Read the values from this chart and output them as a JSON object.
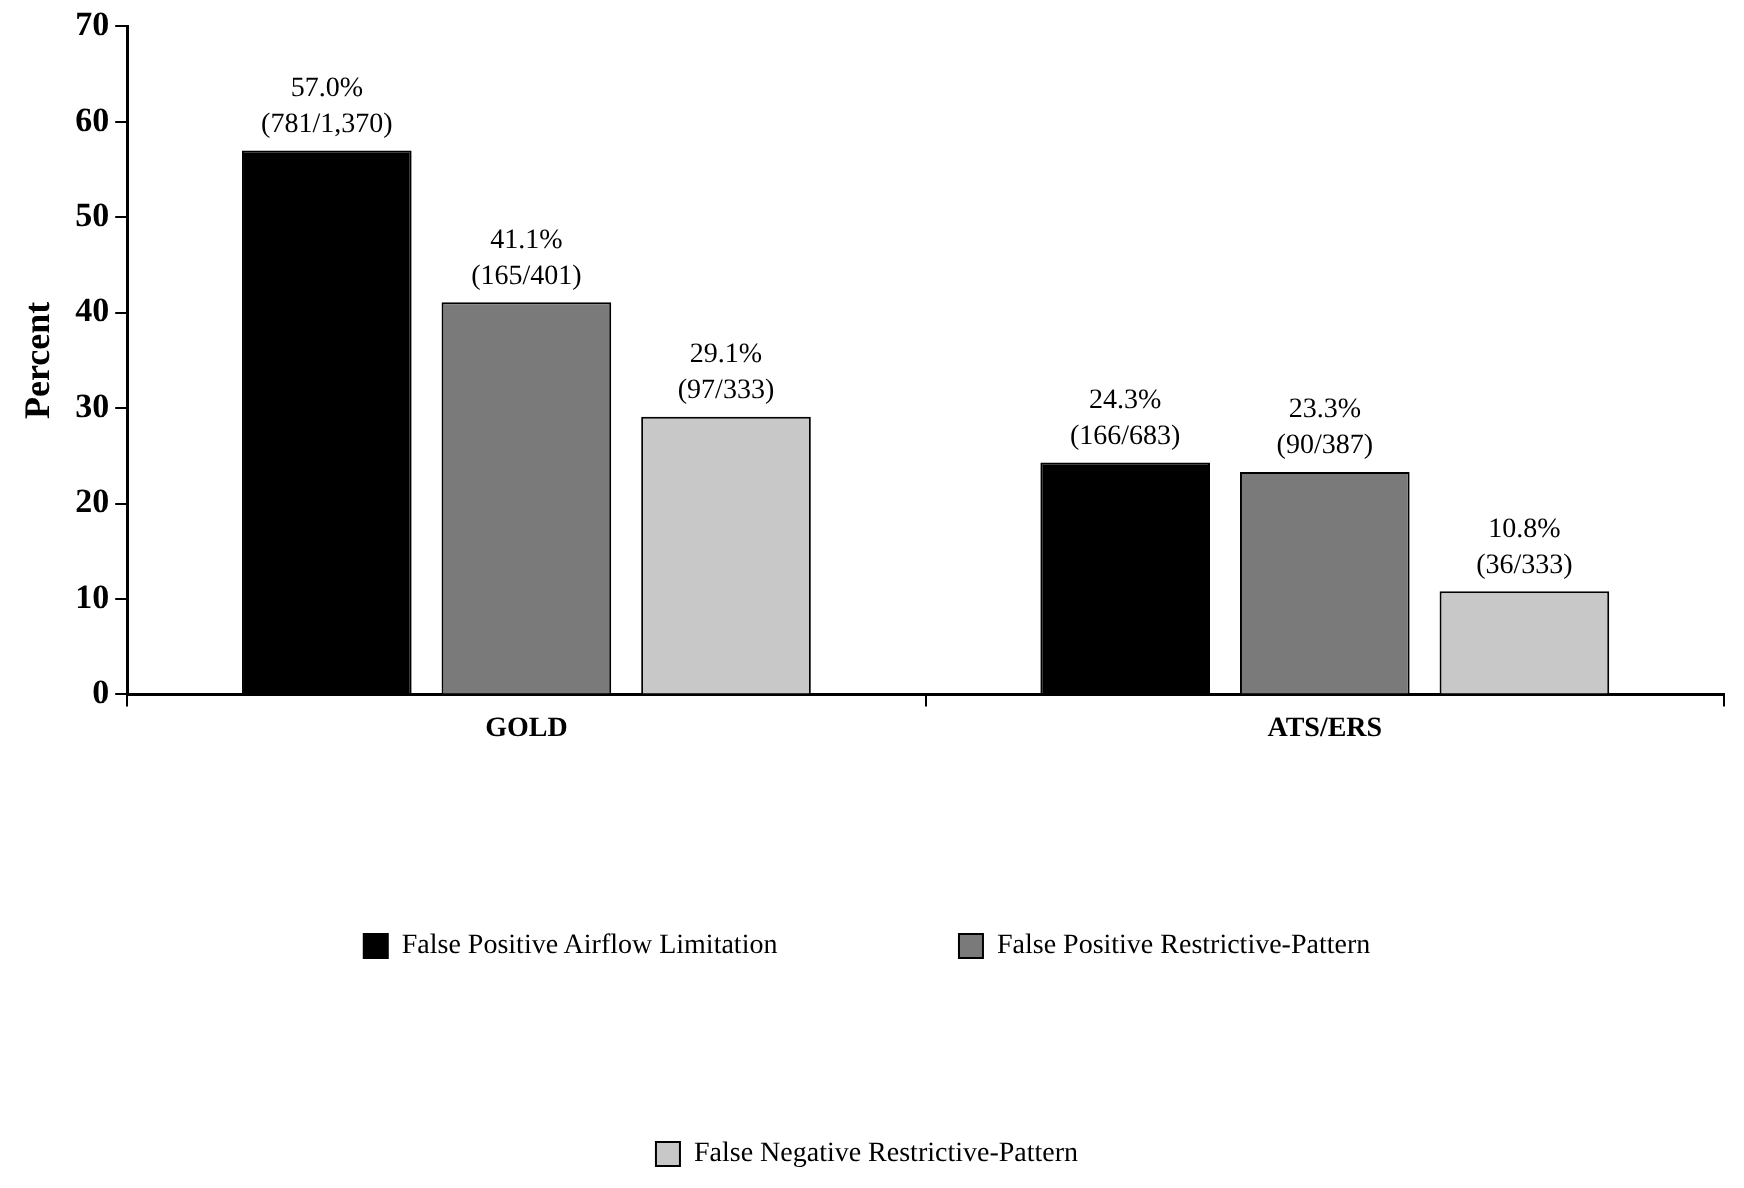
{
  "chart_data": {
    "type": "bar",
    "ylabel": "Percent",
    "categories": [
      "GOLD",
      "ATS/ERS"
    ],
    "series": [
      {
        "name": "False Positive Airflow Limitation",
        "color": "#000000",
        "values": [
          57.0,
          24.3
        ],
        "value_labels": [
          "57.0%\n(781/1,370)",
          "24.3%\n(166/683)"
        ]
      },
      {
        "name": "False Positive Restrictive-Pattern",
        "color": "#7a7a7a",
        "values": [
          41.1,
          23.3
        ],
        "value_labels": [
          "41.1%\n(165/401)",
          "23.3%\n(90/387)"
        ]
      },
      {
        "name": "False Negative Restrictive-Pattern",
        "color": "#c8c8c8",
        "values": [
          29.1,
          10.8
        ],
        "value_labels": [
          "29.1%\n(97/333)",
          "10.8%\n(36/333)"
        ]
      }
    ],
    "ylim": [
      0,
      70
    ],
    "yticks": [
      0,
      10,
      20,
      30,
      40,
      50,
      60,
      70
    ],
    "grid": false,
    "legend": "bottom"
  }
}
